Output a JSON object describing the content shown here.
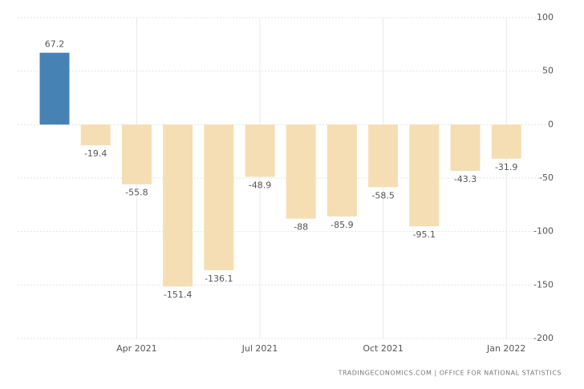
{
  "chart_data": {
    "type": "bar",
    "categories": [
      null,
      null,
      "Apr 2021",
      null,
      null,
      "Jul 2021",
      null,
      null,
      "Oct 2021",
      null,
      null,
      "Jan 2022"
    ],
    "values": [
      67.2,
      -19.4,
      -55.8,
      -151.4,
      -136.1,
      -48.9,
      -88,
      -85.9,
      -58.5,
      -95.1,
      -43.3,
      -31.9
    ],
    "colors": [
      "#4682b4",
      "#f5deb3",
      "#f5deb3",
      "#f5deb3",
      "#f5deb3",
      "#f5deb3",
      "#f5deb3",
      "#f5deb3",
      "#f5deb3",
      "#f5deb3",
      "#f5deb3",
      "#f5deb3"
    ],
    "ylim": [
      -200,
      100
    ],
    "yticks": [
      -200,
      -150,
      -100,
      -50,
      0,
      50,
      100
    ],
    "grid": true,
    "source": "TRADINGECONOMICS.COM | OFFICE FOR NATIONAL STATISTICS"
  }
}
